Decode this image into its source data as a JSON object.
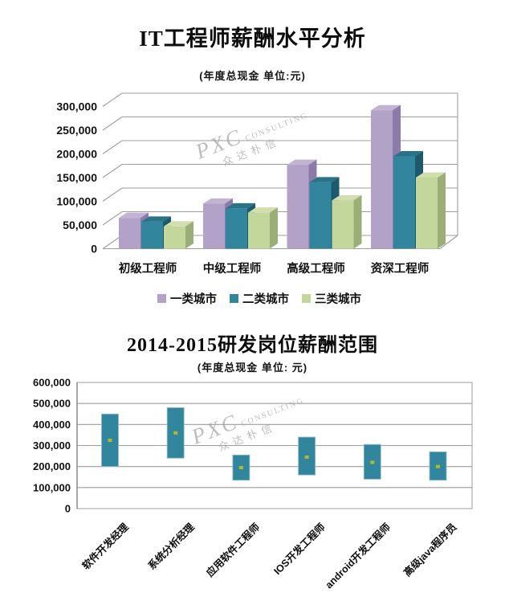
{
  "watermark": {
    "brand": "PXC",
    "brand_suffix": "CONSULTING",
    "cn": "众达朴信"
  },
  "colors": {
    "grid": "#9e9e9e",
    "frame": "#a6a6a6",
    "axis_text": "#111111",
    "range_bar": "#31859c",
    "range_bar_border": "#8fbccb",
    "median_marker": "#b2ba30"
  },
  "chart_data": [
    {
      "type": "bar",
      "variant": "3d-clustered-column",
      "title": "IT工程师薪酬水平分析",
      "subtitle": "(年度总现金 单位:元)",
      "categories": [
        "初级工程师",
        "中级工程师",
        "高级工程师",
        "资深工程师"
      ],
      "series": [
        {
          "name": "一类城市",
          "color": "#b3a2c7",
          "top_color": "#c2b3d3",
          "side_color": "#8c7ba8",
          "values": [
            65000,
            95000,
            177000,
            292000
          ]
        },
        {
          "name": "二类城市",
          "color": "#31859c",
          "top_color": "#2a7288",
          "side_color": "#1d5a6e",
          "values": [
            57000,
            85000,
            140000,
            195000
          ]
        },
        {
          "name": "三类城市",
          "color": "#c3d69b",
          "top_color": "#d2deae",
          "side_color": "#9cae78",
          "values": [
            47000,
            76000,
            102000,
            150000
          ]
        }
      ],
      "ylim": [
        0,
        300000
      ],
      "ytick_step": 50000,
      "grid": true,
      "legend_position": "bottom"
    },
    {
      "type": "bar",
      "variant": "floating-range-column",
      "title": "2014-2015研发岗位薪酬范围",
      "subtitle": "(年度总现金 单位: 元)",
      "categories": [
        "软件开发经理",
        "系统分析经理",
        "应用软件工程师",
        "IOS开发工程师",
        "android开发工程师",
        "高级java程序员"
      ],
      "range_low": [
        200000,
        240000,
        135000,
        160000,
        140000,
        135000
      ],
      "range_high": [
        450000,
        480000,
        255000,
        340000,
        305000,
        270000
      ],
      "median": [
        325000,
        360000,
        195000,
        245000,
        220000,
        200000
      ],
      "ylim": [
        0,
        600000
      ],
      "ytick_step": 100000,
      "grid": true,
      "legend_position": "none"
    }
  ]
}
